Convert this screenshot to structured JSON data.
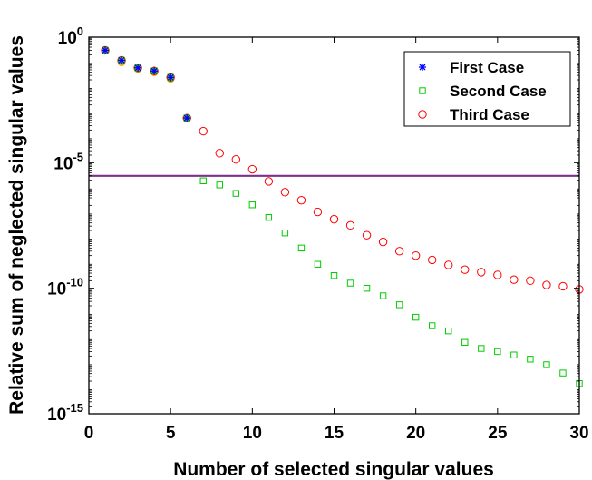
{
  "chart_data": {
    "type": "scatter",
    "xlabel": "Number of selected singular values",
    "ylabel": "Relative sum of neglected singular values",
    "xlim": [
      0,
      30
    ],
    "ylim": [
      1e-15,
      1
    ],
    "y_scale": "log",
    "grid": false,
    "legend_position": "top-right",
    "x_ticks": [
      0,
      5,
      10,
      15,
      20,
      25,
      30
    ],
    "y_ticks": [
      {
        "base": "10",
        "exp": "0",
        "value": 1
      },
      {
        "base": "10",
        "exp": "-5",
        "value": 1e-05
      },
      {
        "base": "10",
        "exp": "-10",
        "value": 1e-10
      },
      {
        "base": "10",
        "exp": "-15",
        "value": 1e-15
      }
    ],
    "reference_line": {
      "y": 3e-06,
      "color": "#7e2f8e"
    },
    "series": [
      {
        "name": "Third Case",
        "marker": "circle",
        "color": "#ff0000",
        "x": [
          1,
          2,
          3,
          4,
          5,
          6,
          7,
          8,
          9,
          10,
          11,
          12,
          13,
          14,
          15,
          16,
          17,
          18,
          19,
          20,
          21,
          22,
          23,
          24,
          25,
          26,
          27,
          28,
          29,
          30
        ],
        "y": [
          0.3,
          0.12,
          0.06,
          0.045,
          0.025,
          0.0006,
          0.00018,
          2.4e-05,
          1.35e-05,
          5.5e-06,
          1.8e-06,
          6.7e-07,
          3.2e-07,
          1.1e-07,
          5.6e-08,
          3.2e-08,
          1.3e-08,
          7e-09,
          3e-09,
          2e-09,
          1.35e-09,
          8.5e-10,
          5.5e-10,
          4.4e-10,
          3.4e-10,
          2.2e-10,
          2e-10,
          1.35e-10,
          1.2e-10,
          9e-11
        ]
      },
      {
        "name": "Second Case",
        "marker": "square",
        "color": "#00cc00",
        "x": [
          1,
          2,
          3,
          4,
          5,
          6,
          7,
          8,
          9,
          10,
          11,
          12,
          13,
          14,
          15,
          16,
          17,
          18,
          19,
          20,
          21,
          22,
          23,
          24,
          25,
          26,
          27,
          28,
          29,
          30
        ],
        "y": [
          0.3,
          0.12,
          0.06,
          0.045,
          0.025,
          0.0006,
          1.9e-06,
          1.3e-06,
          6e-07,
          2.1e-07,
          6.6e-08,
          1.6e-08,
          4e-09,
          9e-10,
          3.2e-10,
          1.6e-10,
          1e-10,
          5e-11,
          2.2e-11,
          7e-12,
          3.2e-12,
          2e-12,
          7e-13,
          4e-13,
          3e-13,
          2.2e-13,
          1.5e-13,
          9e-14,
          4.2e-14,
          1.6e-14
        ]
      },
      {
        "name": "First Case",
        "marker": "star",
        "color": "#0000ff",
        "x": [
          1,
          2,
          3,
          4,
          5,
          6
        ],
        "y": [
          0.3,
          0.12,
          0.06,
          0.045,
          0.025,
          0.0006
        ]
      }
    ],
    "legend_order": [
      "First Case",
      "Second Case",
      "Third Case"
    ],
    "extra_markers": {
      "color": "#edb120",
      "x": [
        1,
        2,
        3,
        4,
        5,
        6
      ],
      "y": [
        0.3,
        0.1,
        0.055,
        0.04,
        0.022,
        0.0006
      ]
    }
  }
}
